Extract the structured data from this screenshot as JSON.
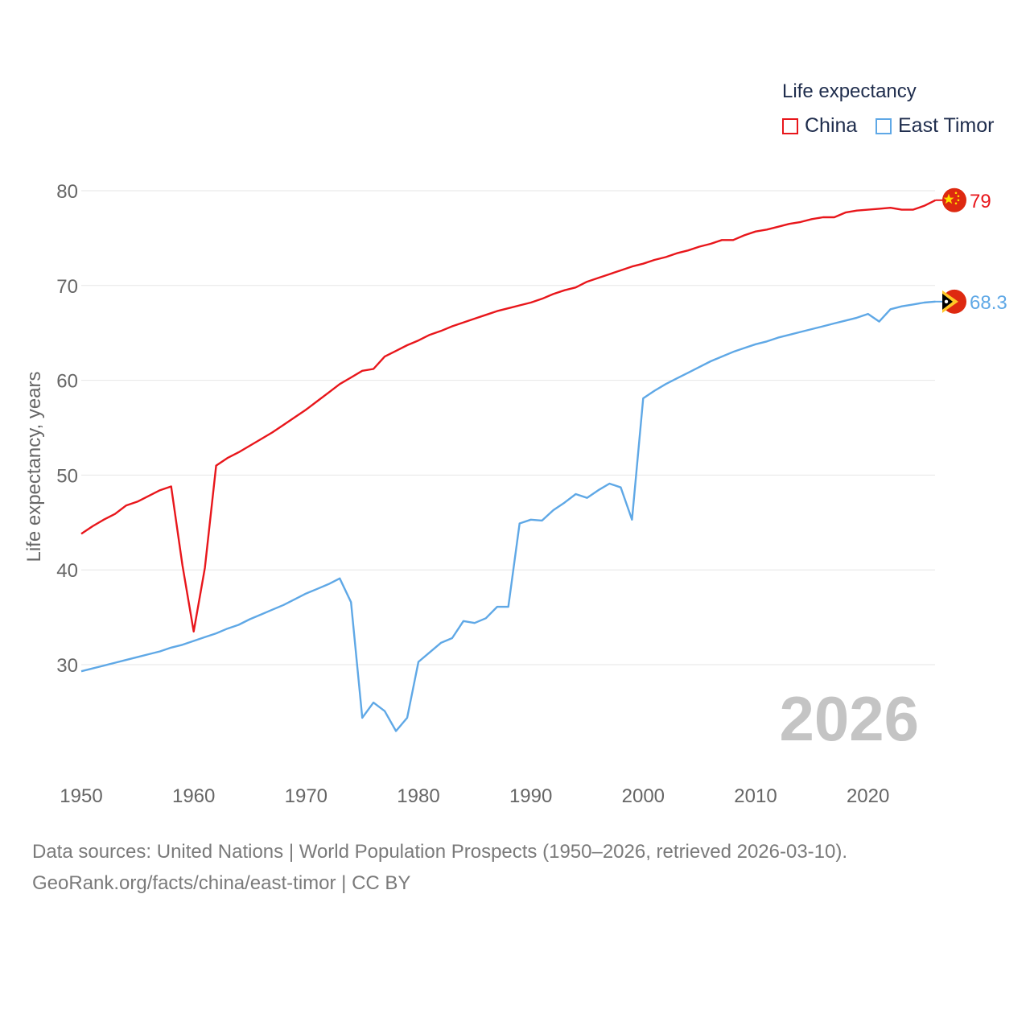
{
  "legend": {
    "title": "Life expectancy",
    "items": [
      {
        "name": "China",
        "color": "#e8161b"
      },
      {
        "name": "East Timor",
        "color": "#5fa8e6"
      }
    ]
  },
  "current_year": "2026",
  "footer": {
    "line1": "Data sources: United Nations | World Population Prospects (1950–2026, retrieved 2026-03-10).",
    "line2": "GeoRank.org/facts/china/east-timor | CC BY"
  },
  "end_labels": {
    "China": "79",
    "East Timor": "68.3"
  },
  "flags": {
    "China": "china-flag-icon",
    "East Timor": "east-timor-flag-icon"
  },
  "chart_data": {
    "type": "line",
    "title": "Life expectancy",
    "xlabel": "",
    "ylabel": "Life expectancy, years",
    "xlim": [
      1950,
      2026
    ],
    "ylim": [
      20,
      85
    ],
    "x_ticks": [
      1950,
      1960,
      1970,
      1980,
      1990,
      2000,
      2010,
      2020
    ],
    "y_ticks": [
      30,
      40,
      50,
      60,
      70,
      80
    ],
    "grid": true,
    "legend_position": "top-right",
    "series": [
      {
        "name": "China",
        "color": "#e8161b",
        "points": [
          [
            1950,
            43.8
          ],
          [
            1951,
            44.6
          ],
          [
            1952,
            45.3
          ],
          [
            1953,
            45.9
          ],
          [
            1954,
            46.8
          ],
          [
            1955,
            47.2
          ],
          [
            1956,
            47.8
          ],
          [
            1957,
            48.4
          ],
          [
            1958,
            48.8
          ],
          [
            1959,
            40.5
          ],
          [
            1960,
            33.5
          ],
          [
            1961,
            40.2
          ],
          [
            1962,
            51.0
          ],
          [
            1963,
            51.8
          ],
          [
            1964,
            52.4
          ],
          [
            1965,
            53.1
          ],
          [
            1966,
            53.8
          ],
          [
            1967,
            54.5
          ],
          [
            1968,
            55.3
          ],
          [
            1969,
            56.1
          ],
          [
            1970,
            56.9
          ],
          [
            1971,
            57.8
          ],
          [
            1972,
            58.7
          ],
          [
            1973,
            59.6
          ],
          [
            1974,
            60.3
          ],
          [
            1975,
            61.0
          ],
          [
            1976,
            61.2
          ],
          [
            1977,
            62.5
          ],
          [
            1978,
            63.1
          ],
          [
            1979,
            63.7
          ],
          [
            1980,
            64.2
          ],
          [
            1981,
            64.8
          ],
          [
            1982,
            65.2
          ],
          [
            1983,
            65.7
          ],
          [
            1984,
            66.1
          ],
          [
            1985,
            66.5
          ],
          [
            1986,
            66.9
          ],
          [
            1987,
            67.3
          ],
          [
            1988,
            67.6
          ],
          [
            1989,
            67.9
          ],
          [
            1990,
            68.2
          ],
          [
            1991,
            68.6
          ],
          [
            1992,
            69.1
          ],
          [
            1993,
            69.5
          ],
          [
            1994,
            69.8
          ],
          [
            1995,
            70.4
          ],
          [
            1996,
            70.8
          ],
          [
            1997,
            71.2
          ],
          [
            1998,
            71.6
          ],
          [
            1999,
            72.0
          ],
          [
            2000,
            72.3
          ],
          [
            2001,
            72.7
          ],
          [
            2002,
            73.0
          ],
          [
            2003,
            73.4
          ],
          [
            2004,
            73.7
          ],
          [
            2005,
            74.1
          ],
          [
            2006,
            74.4
          ],
          [
            2007,
            74.8
          ],
          [
            2008,
            74.8
          ],
          [
            2009,
            75.3
          ],
          [
            2010,
            75.7
          ],
          [
            2011,
            75.9
          ],
          [
            2012,
            76.2
          ],
          [
            2013,
            76.5
          ],
          [
            2014,
            76.7
          ],
          [
            2015,
            77.0
          ],
          [
            2016,
            77.2
          ],
          [
            2017,
            77.2
          ],
          [
            2018,
            77.7
          ],
          [
            2019,
            77.9
          ],
          [
            2020,
            78.0
          ],
          [
            2021,
            78.1
          ],
          [
            2022,
            78.2
          ],
          [
            2023,
            78.0
          ],
          [
            2024,
            78.0
          ],
          [
            2025,
            78.4
          ],
          [
            2026,
            79.0
          ]
        ]
      },
      {
        "name": "East Timor",
        "color": "#5fa8e6",
        "points": [
          [
            1950,
            29.3
          ],
          [
            1951,
            29.6
          ],
          [
            1952,
            29.9
          ],
          [
            1953,
            30.2
          ],
          [
            1954,
            30.5
          ],
          [
            1955,
            30.8
          ],
          [
            1956,
            31.1
          ],
          [
            1957,
            31.4
          ],
          [
            1958,
            31.8
          ],
          [
            1959,
            32.1
          ],
          [
            1960,
            32.5
          ],
          [
            1961,
            32.9
          ],
          [
            1962,
            33.3
          ],
          [
            1963,
            33.8
          ],
          [
            1964,
            34.2
          ],
          [
            1965,
            34.8
          ],
          [
            1966,
            35.3
          ],
          [
            1967,
            35.8
          ],
          [
            1968,
            36.3
          ],
          [
            1969,
            36.9
          ],
          [
            1970,
            37.5
          ],
          [
            1971,
            38.0
          ],
          [
            1972,
            38.5
          ],
          [
            1973,
            39.1
          ],
          [
            1974,
            36.6
          ],
          [
            1975,
            24.4
          ],
          [
            1976,
            26.0
          ],
          [
            1977,
            25.1
          ],
          [
            1978,
            23.0
          ],
          [
            1979,
            24.4
          ],
          [
            1980,
            30.3
          ],
          [
            1981,
            31.3
          ],
          [
            1982,
            32.3
          ],
          [
            1983,
            32.8
          ],
          [
            1984,
            34.6
          ],
          [
            1985,
            34.4
          ],
          [
            1986,
            34.9
          ],
          [
            1987,
            36.1
          ],
          [
            1988,
            36.1
          ],
          [
            1989,
            44.9
          ],
          [
            1990,
            45.3
          ],
          [
            1991,
            45.2
          ],
          [
            1992,
            46.3
          ],
          [
            1993,
            47.1
          ],
          [
            1994,
            48.0
          ],
          [
            1995,
            47.6
          ],
          [
            1996,
            48.4
          ],
          [
            1997,
            49.1
          ],
          [
            1998,
            48.7
          ],
          [
            1999,
            45.3
          ],
          [
            2000,
            58.1
          ],
          [
            2001,
            58.9
          ],
          [
            2002,
            59.6
          ],
          [
            2003,
            60.2
          ],
          [
            2004,
            60.8
          ],
          [
            2005,
            61.4
          ],
          [
            2006,
            62.0
          ],
          [
            2007,
            62.5
          ],
          [
            2008,
            63.0
          ],
          [
            2009,
            63.4
          ],
          [
            2010,
            63.8
          ],
          [
            2011,
            64.1
          ],
          [
            2012,
            64.5
          ],
          [
            2013,
            64.8
          ],
          [
            2014,
            65.1
          ],
          [
            2015,
            65.4
          ],
          [
            2016,
            65.7
          ],
          [
            2017,
            66.0
          ],
          [
            2018,
            66.3
          ],
          [
            2019,
            66.6
          ],
          [
            2020,
            67.0
          ],
          [
            2021,
            66.2
          ],
          [
            2022,
            67.5
          ],
          [
            2023,
            67.8
          ],
          [
            2024,
            68.0
          ],
          [
            2025,
            68.2
          ],
          [
            2026,
            68.3
          ]
        ]
      }
    ]
  }
}
